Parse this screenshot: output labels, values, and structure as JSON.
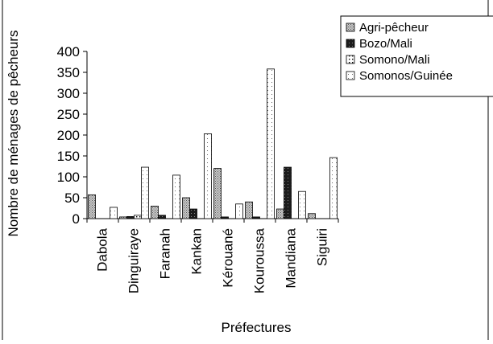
{
  "chart_data": {
    "type": "bar",
    "title": "",
    "xlabel": "Préfectures",
    "ylabel": "Nombre de ménages de pêcheurs",
    "ylim": [
      0,
      400
    ],
    "yticks": [
      0,
      50,
      100,
      150,
      200,
      250,
      300,
      350,
      400
    ],
    "grid": false,
    "legend_position": "top-right",
    "categories": [
      "Dabola",
      "Dinguiraye",
      "Faranah",
      "Kankan",
      "Kérouané",
      "Kouroussa",
      "Mandiana",
      "Siguiri"
    ],
    "series": [
      {
        "name": "Agri-pêcheur",
        "pattern": "crosshatch",
        "values": [
          57,
          4,
          30,
          50,
          120,
          40,
          23,
          12
        ]
      },
      {
        "name": "Bozo/Mali",
        "pattern": "dark",
        "values": [
          0,
          5,
          8,
          23,
          4,
          4,
          123,
          0
        ]
      },
      {
        "name": "Somono/Mali",
        "pattern": "dotted",
        "values": [
          0,
          8,
          0,
          0,
          0,
          0,
          0,
          0
        ]
      },
      {
        "name": "Somonos/Guinée",
        "pattern": "light-dotted",
        "values": [
          27,
          123,
          104,
          203,
          35,
          358,
          65,
          146
        ]
      }
    ]
  }
}
